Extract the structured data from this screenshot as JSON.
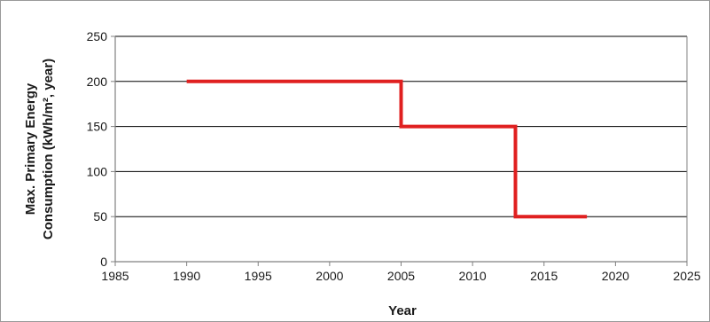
{
  "chart_data": {
    "type": "line",
    "title": "",
    "xlabel": "Year",
    "ylabel_lines": [
      "Max. Primary Energy",
      "Consumption (kWh/m², year)"
    ],
    "xlim": [
      1985,
      2025
    ],
    "ylim": [
      0,
      250
    ],
    "x_ticks": [
      1985,
      1990,
      1995,
      2000,
      2005,
      2010,
      2015,
      2020,
      2025
    ],
    "y_ticks": [
      0,
      50,
      100,
      150,
      200,
      250
    ],
    "grid": "horizontal",
    "legend": "none",
    "series": [
      {
        "color": "#e02020",
        "x": [
          1990,
          2005,
          2005,
          2013,
          2013,
          2018
        ],
        "y": [
          200,
          200,
          150,
          150,
          50,
          50
        ]
      }
    ],
    "colors": {
      "line": "#e02020",
      "grid": "#000000",
      "axis": "#808080",
      "frame": "#9a9a9a"
    }
  }
}
